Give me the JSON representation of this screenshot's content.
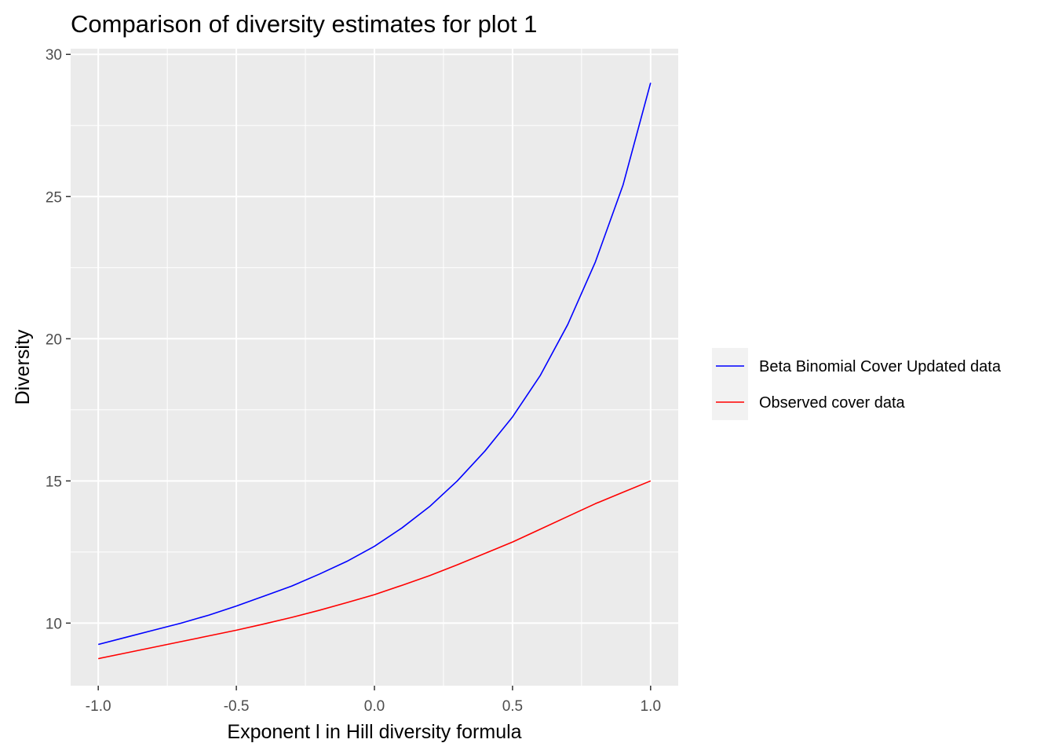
{
  "chart_data": {
    "type": "line",
    "title": "Comparison of diversity estimates for plot 1",
    "xlabel": "Exponent l in Hill diversity formula",
    "ylabel": "Diversity",
    "xlim": [
      -1.1,
      1.1
    ],
    "ylim": [
      7.8,
      30.2
    ],
    "x_ticks": [
      -1.0,
      -0.5,
      0.0,
      0.5,
      1.0
    ],
    "x_tick_labels": [
      "-1.0",
      "-0.5",
      "0.0",
      "0.5",
      "1.0"
    ],
    "y_ticks": [
      10,
      15,
      20,
      25,
      30
    ],
    "y_tick_labels": [
      "10",
      "15",
      "20",
      "25",
      "30"
    ],
    "grid": true,
    "legend_position": "right",
    "panel_background": "#ebebeb",
    "series": [
      {
        "name": "Beta Binomial Cover Updated data",
        "color": "#0000ff",
        "x": [
          -1.0,
          -0.9,
          -0.8,
          -0.7,
          -0.6,
          -0.5,
          -0.4,
          -0.3,
          -0.2,
          -0.1,
          0.0,
          0.1,
          0.2,
          0.3,
          0.4,
          0.5,
          0.6,
          0.7,
          0.8,
          0.9,
          1.0
        ],
        "y": [
          9.25,
          9.5,
          9.75,
          10.0,
          10.28,
          10.6,
          10.95,
          11.3,
          11.72,
          12.17,
          12.7,
          13.35,
          14.1,
          15.0,
          16.05,
          17.25,
          18.7,
          20.5,
          22.7,
          25.4,
          29.0
        ]
      },
      {
        "name": "Observed cover data",
        "color": "#ff0000",
        "x": [
          -1.0,
          -0.9,
          -0.8,
          -0.7,
          -0.6,
          -0.5,
          -0.4,
          -0.3,
          -0.2,
          -0.1,
          0.0,
          0.1,
          0.2,
          0.3,
          0.4,
          0.5,
          0.6,
          0.7,
          0.8,
          0.9,
          1.0
        ],
        "y": [
          8.75,
          8.95,
          9.15,
          9.35,
          9.55,
          9.75,
          9.97,
          10.2,
          10.45,
          10.72,
          11.0,
          11.33,
          11.67,
          12.05,
          12.45,
          12.85,
          13.3,
          13.75,
          14.2,
          14.6,
          15.0
        ]
      }
    ]
  }
}
